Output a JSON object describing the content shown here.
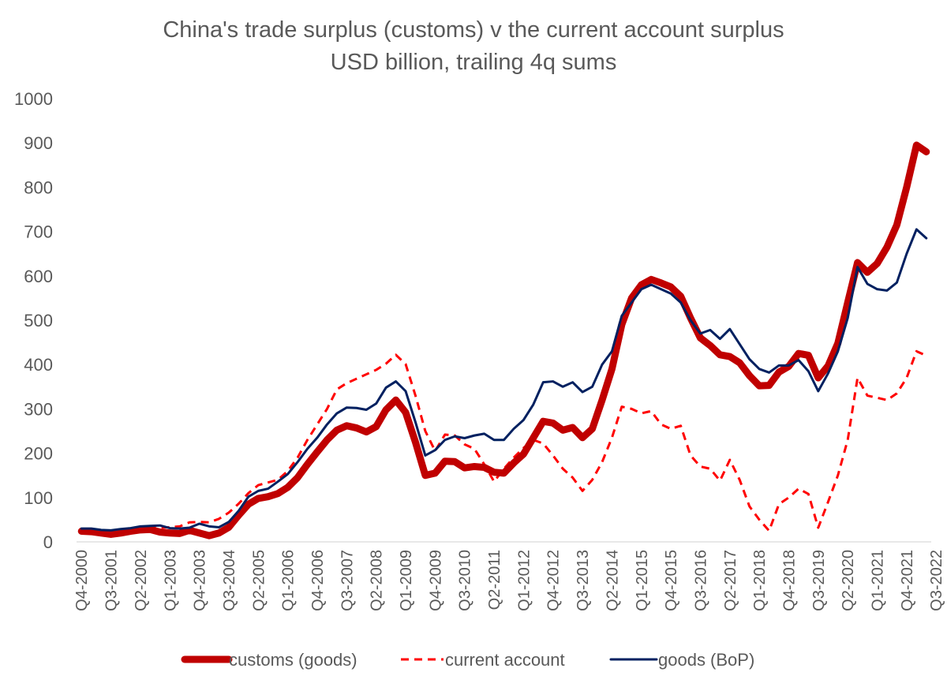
{
  "chart_data": {
    "type": "line",
    "title": "China's trade surplus (customs) v the current account surplus",
    "subtitle": "USD billion, trailing 4q sums",
    "ylim": [
      0,
      1000
    ],
    "yticks": [
      0,
      100,
      200,
      300,
      400,
      500,
      600,
      700,
      800,
      900,
      1000
    ],
    "x_labels": [
      "Q4-2000",
      "Q3-2001",
      "Q2-2002",
      "Q1-2003",
      "Q4-2003",
      "Q3-2004",
      "Q2-2005",
      "Q1-2006",
      "Q4-2006",
      "Q3-2007",
      "Q2-2008",
      "Q1-2009",
      "Q4-2009",
      "Q3-2010",
      "Q2-2011",
      "Q1-2012",
      "Q4-2012",
      "Q3-2013",
      "Q2-2014",
      "Q1-2015",
      "Q4-2015",
      "Q3-2016",
      "Q2-2017",
      "Q1-2018",
      "Q4-2018",
      "Q3-2019",
      "Q2-2020",
      "Q1-2021",
      "Q4-2021",
      "Q3-2022"
    ],
    "x_label_every": 3,
    "legend_position": "bottom",
    "grid": false,
    "series": [
      {
        "name": "customs (goods)",
        "color": "#c00000",
        "style": "solid-thick",
        "values": [
          24,
          23,
          20,
          17,
          20,
          24,
          27,
          28,
          22,
          20,
          19,
          26,
          20,
          14,
          20,
          33,
          60,
          85,
          98,
          102,
          109,
          123,
          145,
          175,
          203,
          230,
          252,
          262,
          257,
          248,
          260,
          298,
          320,
          292,
          225,
          150,
          155,
          182,
          181,
          167,
          170,
          168,
          157,
          155,
          178,
          198,
          235,
          272,
          268,
          252,
          258,
          235,
          255,
          320,
          390,
          490,
          550,
          580,
          592,
          584,
          575,
          554,
          505,
          460,
          443,
          422,
          418,
          404,
          375,
          352,
          353,
          383,
          396,
          425,
          421,
          370,
          397,
          448,
          540,
          630,
          608,
          628,
          665,
          715,
          800,
          895,
          880
        ]
      },
      {
        "name": "current account",
        "color": "#ff0000",
        "style": "dashed",
        "values": [
          22,
          22,
          20,
          20,
          25,
          29,
          30,
          32,
          32,
          33,
          35,
          44,
          45,
          44,
          52,
          66,
          86,
          110,
          128,
          134,
          140,
          160,
          190,
          230,
          265,
          300,
          344,
          358,
          368,
          378,
          388,
          402,
          422,
          401,
          330,
          250,
          205,
          242,
          240,
          220,
          210,
          175,
          136,
          165,
          190,
          212,
          230,
          222,
          195,
          165,
          145,
          115,
          140,
          180,
          235,
          305,
          300,
          290,
          295,
          265,
          255,
          262,
          195,
          170,
          165,
          138,
          185,
          140,
          80,
          50,
          25,
          85,
          100,
          120,
          108,
          32,
          90,
          150,
          230,
          370,
          330,
          325,
          320,
          335,
          370,
          430,
          420
        ]
      },
      {
        "name": "goods (BoP)",
        "color": "#002060",
        "style": "solid-thin",
        "values": [
          30,
          30,
          27,
          26,
          29,
          31,
          35,
          36,
          37,
          31,
          30,
          32,
          41,
          35,
          33,
          45,
          70,
          102,
          115,
          120,
          136,
          153,
          180,
          210,
          235,
          265,
          290,
          303,
          302,
          298,
          312,
          348,
          362,
          340,
          270,
          195,
          207,
          230,
          238,
          234,
          240,
          244,
          230,
          230,
          255,
          275,
          310,
          360,
          362,
          350,
          360,
          338,
          350,
          400,
          430,
          510,
          540,
          570,
          580,
          570,
          560,
          540,
          500,
          470,
          478,
          458,
          480,
          446,
          412,
          390,
          382,
          398,
          398,
          410,
          385,
          340,
          380,
          430,
          505,
          620,
          582,
          570,
          567,
          585,
          650,
          705,
          685
        ]
      }
    ]
  }
}
